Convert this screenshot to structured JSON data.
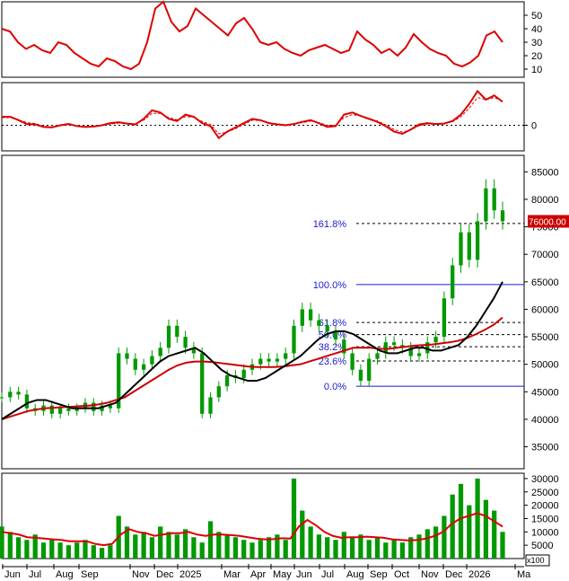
{
  "chart_data": {
    "type": "candlestick",
    "x_labels": [
      "Jun",
      "Jul",
      "Aug",
      "Sep",
      "Nov",
      "Dec",
      "2025",
      "Mar",
      "Apr",
      "May",
      "Jun",
      "Jul",
      "Aug",
      "Sep",
      "Oct",
      "Nov",
      "Dec",
      "2026",
      "Ma"
    ],
    "oscillator_panel": {
      "y_ticks": [
        10,
        20,
        30,
        40,
        50
      ],
      "ylim": [
        4,
        60
      ],
      "color": "#dd0000",
      "values": [
        40,
        38,
        30,
        25,
        28,
        24,
        22,
        30,
        28,
        22,
        18,
        14,
        12,
        18,
        16,
        12,
        10,
        14,
        30,
        55,
        60,
        45,
        38,
        42,
        55,
        50,
        45,
        40,
        35,
        44,
        48,
        40,
        30,
        28,
        30,
        25,
        22,
        20,
        24,
        26,
        28,
        25,
        22,
        24,
        38,
        32,
        28,
        22,
        25,
        20,
        26,
        36,
        30,
        25,
        22,
        20,
        14,
        12,
        15,
        20,
        35,
        38,
        30
      ]
    },
    "macd_panel": {
      "y_ticks": [
        0
      ],
      "ylim": [
        -6,
        10
      ],
      "macd_color": "#dd0000",
      "signal_color": "#dd0000",
      "zero_line": true,
      "macd": [
        2,
        2,
        1.2,
        0.3,
        0.2,
        -0.4,
        -0.5,
        0,
        0.3,
        -0.2,
        -0.4,
        -0.3,
        0,
        0.5,
        0.7,
        0.4,
        0.2,
        1.5,
        3.5,
        3,
        1.5,
        1,
        2.5,
        2,
        0.5,
        -0.2,
        -3,
        -1.5,
        -0.5,
        0.5,
        1.5,
        1.2,
        0.5,
        0.2,
        0,
        0.3,
        0.8,
        1.2,
        0.5,
        -0.4,
        -0.2,
        2.5,
        3,
        2.2,
        1.5,
        0.8,
        -0.2,
        -1.5,
        -2,
        -1,
        0.2,
        0.5,
        0.3,
        0.4,
        1,
        2.5,
        5,
        8,
        6,
        7,
        5.5
      ],
      "signal": [
        1.8,
        1.8,
        1.3,
        0.6,
        0.4,
        -0.2,
        -0.4,
        -0.1,
        0.2,
        -0.1,
        -0.3,
        -0.2,
        0,
        0.3,
        0.5,
        0.4,
        0.3,
        1.2,
        2.8,
        2.8,
        1.8,
        1.3,
        2,
        1.9,
        0.9,
        0.2,
        -2,
        -1.6,
        -0.8,
        0.2,
        1.2,
        1.1,
        0.6,
        0.3,
        0.1,
        0.3,
        0.6,
        1,
        0.6,
        0,
        0,
        1.8,
        2.5,
        2.2,
        1.6,
        1,
        0.1,
        -1,
        -1.6,
        -1.1,
        -0.1,
        0.3,
        0.3,
        0.4,
        0.8,
        2,
        4,
        6.5,
        6,
        6.5,
        5.6
      ]
    },
    "price_panel": {
      "y_ticks": [
        35000,
        40000,
        45000,
        50000,
        55000,
        60000,
        65000,
        70000,
        75000,
        80000,
        85000
      ],
      "ylim": [
        31000,
        88000
      ],
      "last_price_label": "76000.00",
      "candle_color": "#009900",
      "close": [
        44000,
        45000,
        44500,
        42000,
        41500,
        42500,
        41000,
        42000,
        41500,
        42000,
        43000,
        41500,
        42500,
        42000,
        52000,
        51000,
        49000,
        50000,
        51500,
        53000,
        57000,
        55000,
        53000,
        52000,
        41000,
        44000,
        46000,
        48000,
        47500,
        49000,
        50000,
        51000,
        50500,
        51000,
        52000,
        57000,
        60000,
        58000,
        57000,
        56000,
        54500,
        52000,
        49000,
        47000,
        51000,
        52000,
        54000,
        53500,
        53000,
        51500,
        52000,
        54000,
        55000,
        62000,
        68000,
        74000,
        69000,
        76000,
        82000,
        78000,
        76000
      ],
      "ma_black": [
        40000,
        41000,
        42000,
        43000,
        43500,
        43500,
        43000,
        42500,
        42000,
        42000,
        42000,
        42000,
        42500,
        43000,
        44500,
        46000,
        47500,
        49000,
        50500,
        51500,
        52000,
        52500,
        53000,
        52000,
        50500,
        49000,
        48000,
        47500,
        47000,
        47000,
        47500,
        48500,
        49500,
        50500,
        51500,
        53000,
        54500,
        55500,
        56000,
        56000,
        55500,
        54500,
        53500,
        52500,
        52000,
        52000,
        52500,
        53000,
        53000,
        52500,
        52500,
        53000,
        53500,
        55000,
        57000,
        59500,
        62000,
        65000
      ],
      "ma_red": [
        40000,
        40500,
        41000,
        41500,
        41800,
        42000,
        42100,
        42200,
        42300,
        42400,
        42500,
        42700,
        43000,
        43500,
        44000,
        45000,
        46000,
        47000,
        48000,
        49000,
        49800,
        50300,
        50500,
        50500,
        50400,
        50200,
        50000,
        49800,
        49600,
        49500,
        49500,
        49500,
        49600,
        49800,
        50000,
        50500,
        51000,
        51500,
        52000,
        52500,
        53000,
        53000,
        53000,
        52800,
        52800,
        53000,
        53200,
        53400,
        53500,
        53600,
        53800,
        54000,
        54300,
        54800,
        55500,
        56300,
        57200,
        58500
      ],
      "fibonacci": [
        {
          "label": "161.8%",
          "value": 75600
        },
        {
          "label": "100.0%",
          "value": 64500
        },
        {
          "label": "61.8%",
          "value": 57600
        },
        {
          "label": "50.0%",
          "value": 55400
        },
        {
          "label": "38.2%",
          "value": 53200
        },
        {
          "label": "23.6%",
          "value": 50600
        },
        {
          "label": "0.0%",
          "value": 46000
        }
      ]
    },
    "volume_panel": {
      "y_ticks": [
        5000,
        10000,
        15000,
        20000,
        25000,
        30000
      ],
      "ylim": [
        0,
        32000
      ],
      "unit_label": "x100",
      "bar_color": "#009900",
      "ma_color": "#dd0000",
      "volume": [
        12000,
        10000,
        8000,
        7000,
        9000,
        6000,
        7000,
        6000,
        5000,
        6000,
        7000,
        5000,
        4000,
        5000,
        16000,
        12000,
        9000,
        10000,
        8000,
        12000,
        10000,
        9000,
        11000,
        8000,
        6000,
        14000,
        10000,
        9000,
        8000,
        7000,
        6000,
        7000,
        8000,
        9000,
        7000,
        30000,
        18000,
        12000,
        9000,
        8000,
        7000,
        10000,
        8000,
        9000,
        7000,
        8000,
        6000,
        7000,
        6000,
        8000,
        9000,
        11000,
        12000,
        16000,
        24000,
        28000,
        20000,
        30000,
        22000,
        18000,
        10000
      ],
      "volume_ma": [
        10000,
        9500,
        9000,
        8000,
        7800,
        7500,
        7200,
        7000,
        6500,
        6500,
        6500,
        5500,
        5000,
        5500,
        9000,
        11000,
        10000,
        9500,
        8500,
        9000,
        9500,
        9500,
        10000,
        9000,
        8500,
        9000,
        9000,
        8800,
        8500,
        8000,
        7500,
        7200,
        7300,
        7600,
        7500,
        12000,
        14500,
        12500,
        10000,
        8500,
        7800,
        8000,
        8000,
        8200,
        8000,
        7800,
        7200,
        7000,
        6800,
        7000,
        7500,
        8500,
        10000,
        13000,
        15000,
        16000,
        17000,
        16000,
        14000,
        12000
      ]
    }
  }
}
